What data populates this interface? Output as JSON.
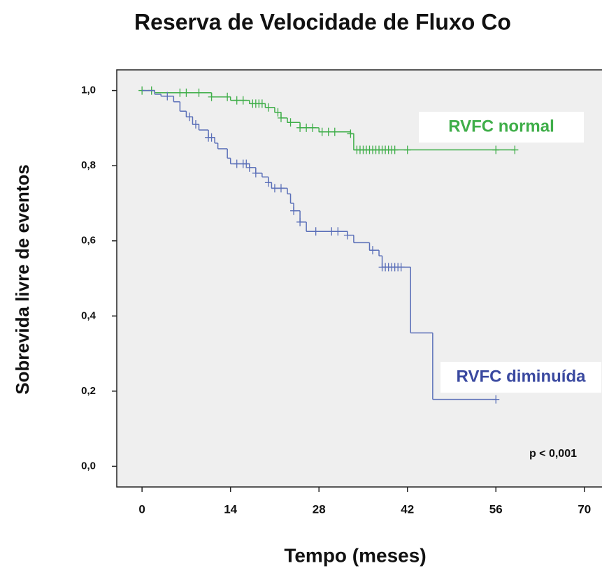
{
  "chart_data": {
    "type": "kaplan-meier",
    "title": "Reserva de Velocidade de Fluxo Co",
    "xlabel": "Tempo (meses)",
    "ylabel": "Sobrevida livre de eventos",
    "annotation": "p < 0,001",
    "xlim": [
      -4,
      76
    ],
    "ylim": [
      -0.055,
      1.055
    ],
    "xticks": [
      0,
      14,
      28,
      42,
      56,
      70
    ],
    "yticks": [
      {
        "value": 0,
        "label": "0,0"
      },
      {
        "value": 0.2,
        "label": "0,2"
      },
      {
        "value": 0.4,
        "label": "0,4"
      },
      {
        "value": 0.6,
        "label": "0,6"
      },
      {
        "value": 0.8,
        "label": "0,8"
      },
      {
        "value": 1,
        "label": "1,0"
      }
    ],
    "series": [
      {
        "name": "RVFC normal",
        "color": "#3fae49",
        "x": [
          0,
          2,
          11,
          14,
          17,
          19.5,
          21,
          22,
          23,
          25,
          28,
          33,
          33.5,
          59
        ],
        "values": [
          1.0,
          0.994,
          0.983,
          0.974,
          0.965,
          0.955,
          0.942,
          0.927,
          0.915,
          0.901,
          0.89,
          0.885,
          0.842,
          0.842
        ],
        "censored": [
          0,
          1.5,
          6,
          7,
          9,
          11,
          13.5,
          15,
          16,
          17.5,
          18,
          18.5,
          19,
          20,
          21.5,
          22,
          23.5,
          25,
          26,
          27,
          28.5,
          29.5,
          30.5,
          33,
          34,
          34.5,
          35,
          35.5,
          36,
          36.5,
          37,
          37.5,
          38,
          38.5,
          39,
          39.5,
          40,
          42,
          56,
          59
        ]
      },
      {
        "name": "RVFC diminuída",
        "color": "#5a6fb8",
        "x": [
          0,
          2,
          3,
          5,
          6,
          7,
          8,
          9,
          10.5,
          11.5,
          12,
          13.5,
          14,
          17,
          18,
          19,
          20,
          20.5,
          23,
          23.5,
          24,
          25,
          26,
          32.5,
          33.5,
          36,
          37.5,
          38,
          42.5,
          46,
          56
        ],
        "values": [
          1.0,
          0.99,
          0.985,
          0.97,
          0.945,
          0.93,
          0.91,
          0.895,
          0.875,
          0.86,
          0.845,
          0.82,
          0.805,
          0.795,
          0.78,
          0.77,
          0.755,
          0.74,
          0.725,
          0.7,
          0.68,
          0.65,
          0.625,
          0.615,
          0.595,
          0.575,
          0.56,
          0.53,
          0.355,
          0.178,
          0.178
        ],
        "censored": [
          4,
          7.5,
          8.5,
          10.5,
          11,
          15,
          16,
          16.5,
          17,
          18,
          20,
          21,
          22,
          24,
          25,
          27.5,
          30,
          31,
          32.5,
          36.5,
          38,
          38.5,
          39,
          39.5,
          40,
          40.5,
          41,
          56
        ]
      }
    ]
  }
}
